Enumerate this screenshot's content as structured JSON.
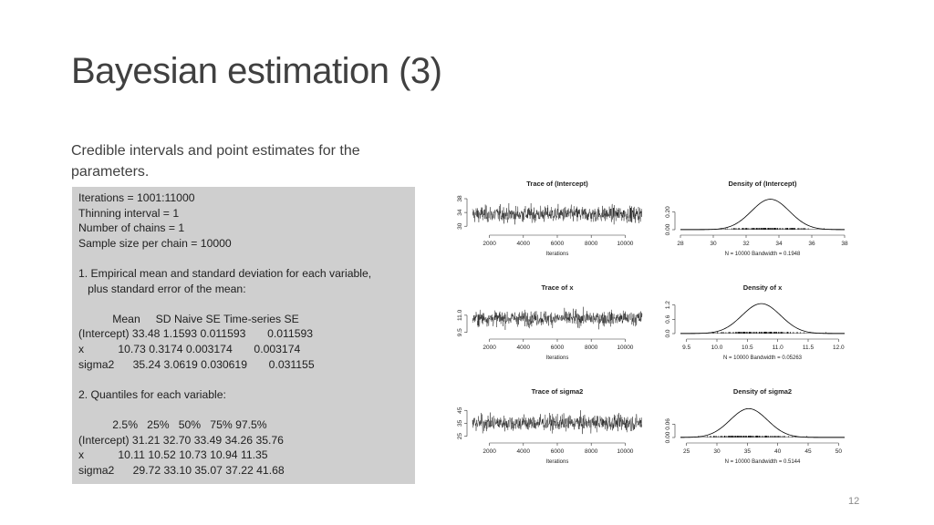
{
  "slide": {
    "title": "Bayesian estimation (3)",
    "subtitle": "Credible intervals and point estimates for the parameters.",
    "page_number": "12"
  },
  "output_lines": [
    "Iterations = 1001:11000",
    "Thinning interval = 1",
    "Number of chains = 1",
    "Sample size per chain = 10000",
    "",
    "1. Empirical mean and standard deviation for each variable,",
    "   plus standard error of the mean:",
    "",
    "           Mean     SD Naive SE Time-series SE",
    "(Intercept) 33.48 1.1593 0.011593       0.011593",
    "x           10.73 0.3174 0.003174       0.003174",
    "sigma2      35.24 3.0619 0.030619       0.031155",
    "",
    "2. Quantiles for each variable:",
    "",
    "           2.5%   25%   50%   75% 97.5%",
    "(Intercept) 31.21 32.70 33.49 34.26 35.76",
    "x           10.11 10.52 10.73 10.94 11.35",
    "sigma2      29.72 33.10 35.07 37.22 41.68"
  ],
  "chart_data": [
    {
      "type": "line",
      "title": "Trace of (Intercept)",
      "xlabel": "Iterations",
      "xlim": [
        1001,
        11000
      ],
      "xticks": [
        2000,
        4000,
        6000,
        8000,
        10000
      ],
      "xtick_labels": [
        "2000",
        "4000",
        "6000",
        "8000",
        "10000"
      ],
      "ylim": [
        29,
        38
      ],
      "yticks": [
        30,
        34,
        38
      ],
      "ytick_labels": [
        "30",
        "34",
        "38"
      ],
      "mean": 33.48,
      "sd": 1.1593,
      "grid": false
    },
    {
      "type": "line",
      "title": "Density of (Intercept)",
      "xlabel": "N = 10000   Bandwidth = 0.1948",
      "xlim": [
        28,
        38
      ],
      "xticks": [
        28,
        30,
        32,
        34,
        36,
        38
      ],
      "xtick_labels": [
        "28",
        "30",
        "32",
        "34",
        "36",
        "38"
      ],
      "ylim": [
        0,
        0.35
      ],
      "yticks": [
        0,
        0.2
      ],
      "ytick_labels": [
        "0.00",
        "0.20"
      ],
      "mean": 33.48,
      "sd": 1.1593,
      "grid": false
    },
    {
      "type": "line",
      "title": "Trace of x",
      "xlabel": "Iterations",
      "xlim": [
        1001,
        11000
      ],
      "xticks": [
        2000,
        4000,
        6000,
        8000,
        10000
      ],
      "xtick_labels": [
        "2000",
        "4000",
        "6000",
        "8000",
        "10000"
      ],
      "ylim": [
        9.4,
        12.1
      ],
      "yticks": [
        9.5,
        11.0
      ],
      "ytick_labels": [
        "9.5",
        "11.0"
      ],
      "mean": 10.73,
      "sd": 0.3174,
      "grid": false
    },
    {
      "type": "line",
      "title": "Density of x",
      "xlabel": "N = 10000   Bandwidth = 0.05263",
      "xlim": [
        9.4,
        12.1
      ],
      "xticks": [
        9.5,
        10.0,
        10.5,
        11.0,
        11.5,
        12.0
      ],
      "xtick_labels": [
        "9.5",
        "10.0",
        "10.5",
        "11.0",
        "11.5",
        "12.0"
      ],
      "ylim": [
        0,
        1.3
      ],
      "yticks": [
        0,
        0.6,
        1.2
      ],
      "ytick_labels": [
        "0.0",
        "0.6",
        "1.2"
      ],
      "mean": 10.73,
      "sd": 0.3174,
      "grid": false
    },
    {
      "type": "line",
      "title": "Trace of sigma2",
      "xlabel": "Iterations",
      "xlim": [
        1001,
        11000
      ],
      "xticks": [
        2000,
        4000,
        6000,
        8000,
        10000
      ],
      "xtick_labels": [
        "2000",
        "4000",
        "6000",
        "8000",
        "10000"
      ],
      "ylim": [
        24,
        48
      ],
      "yticks": [
        25,
        35,
        45
      ],
      "ytick_labels": [
        "25",
        "35",
        "45"
      ],
      "mean": 35.24,
      "sd": 3.0619,
      "grid": false
    },
    {
      "type": "line",
      "title": "Density of sigma2",
      "xlabel": "N = 10000   Bandwidth = 0.5144",
      "xlim": [
        24,
        51
      ],
      "xticks": [
        25,
        30,
        35,
        40,
        45,
        50
      ],
      "xtick_labels": [
        "25",
        "30",
        "35",
        "40",
        "45",
        "50"
      ],
      "ylim": [
        0,
        0.14
      ],
      "yticks": [
        0,
        0.06
      ],
      "ytick_labels": [
        "0.00",
        "0.06"
      ],
      "mean": 35.24,
      "sd": 3.0619,
      "grid": false
    }
  ]
}
